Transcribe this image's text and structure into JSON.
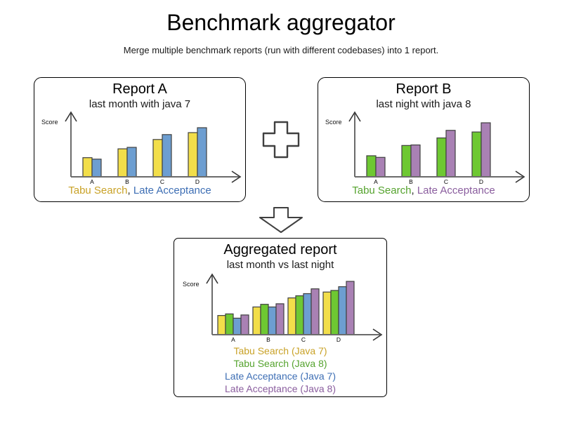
{
  "header": {
    "title": "Benchmark aggregator",
    "subtitle": "Merge multiple benchmark reports (run with different codebases) into 1 report."
  },
  "legend_separator": ",",
  "colors": {
    "bar_outline": "#404040",
    "axis_line": "#6b6b6b",
    "arrowhead": "#333333",
    "shape_outline": "#404040",
    "tabu_java7": "#F2DE4A",
    "tabu_java8": "#6EC832",
    "late_java7": "#6D9ED1",
    "late_java8": "#A981B4"
  },
  "chart_data": [
    {
      "type": "bar",
      "title": "Report A",
      "subtitle": "last month with java 7",
      "ylabel": "Score",
      "xlabel": "",
      "categories": [
        "A",
        "B",
        "C",
        "D"
      ],
      "ylim": [
        0,
        100
      ],
      "grid": false,
      "legend_position": "bottom",
      "series": [
        {
          "name": "Tabu Search",
          "fill": "#F2DE4A",
          "text_color": "#C9A227",
          "values": [
            39,
            57,
            76,
            90
          ]
        },
        {
          "name": "Late Acceptance",
          "fill": "#6D9ED1",
          "text_color": "#3D6EB4",
          "values": [
            36,
            60,
            86,
            100
          ]
        }
      ]
    },
    {
      "type": "bar",
      "title": "Report B",
      "subtitle": "last night with java 8",
      "ylabel": "Score",
      "xlabel": "",
      "categories": [
        "A",
        "B",
        "C",
        "D"
      ],
      "ylim": [
        0,
        100
      ],
      "grid": false,
      "legend_position": "bottom",
      "series": [
        {
          "name": "Tabu Search",
          "fill": "#6EC832",
          "text_color": "#55A32E",
          "values": [
            39,
            58,
            72,
            83
          ]
        },
        {
          "name": "Late Acceptance",
          "fill": "#A981B4",
          "text_color": "#8A5D9E",
          "values": [
            36,
            59,
            86,
            100
          ]
        }
      ]
    },
    {
      "type": "bar",
      "title": "Aggregated report",
      "subtitle": "last month vs last night",
      "ylabel": "Score",
      "xlabel": "",
      "categories": [
        "A",
        "B",
        "C",
        "D"
      ],
      "ylim": [
        0,
        100
      ],
      "grid": false,
      "legend_position": "bottom",
      "series": [
        {
          "name": "Tabu Search (Java 7)",
          "fill": "#F2DE4A",
          "text_color": "#C9A227",
          "values": [
            36,
            52,
            69,
            80
          ]
        },
        {
          "name": "Tabu Search (Java 8)",
          "fill": "#6EC832",
          "text_color": "#55A32E",
          "values": [
            39,
            57,
            73,
            83
          ]
        },
        {
          "name": "Late Acceptance (Java 7)",
          "fill": "#6D9ED1",
          "text_color": "#3D6EB4",
          "values": [
            31,
            52,
            77,
            90
          ]
        },
        {
          "name": "Late Acceptance (Java 8)",
          "fill": "#A981B4",
          "text_color": "#8A5D9E",
          "values": [
            37,
            58,
            86,
            100
          ]
        }
      ]
    }
  ]
}
